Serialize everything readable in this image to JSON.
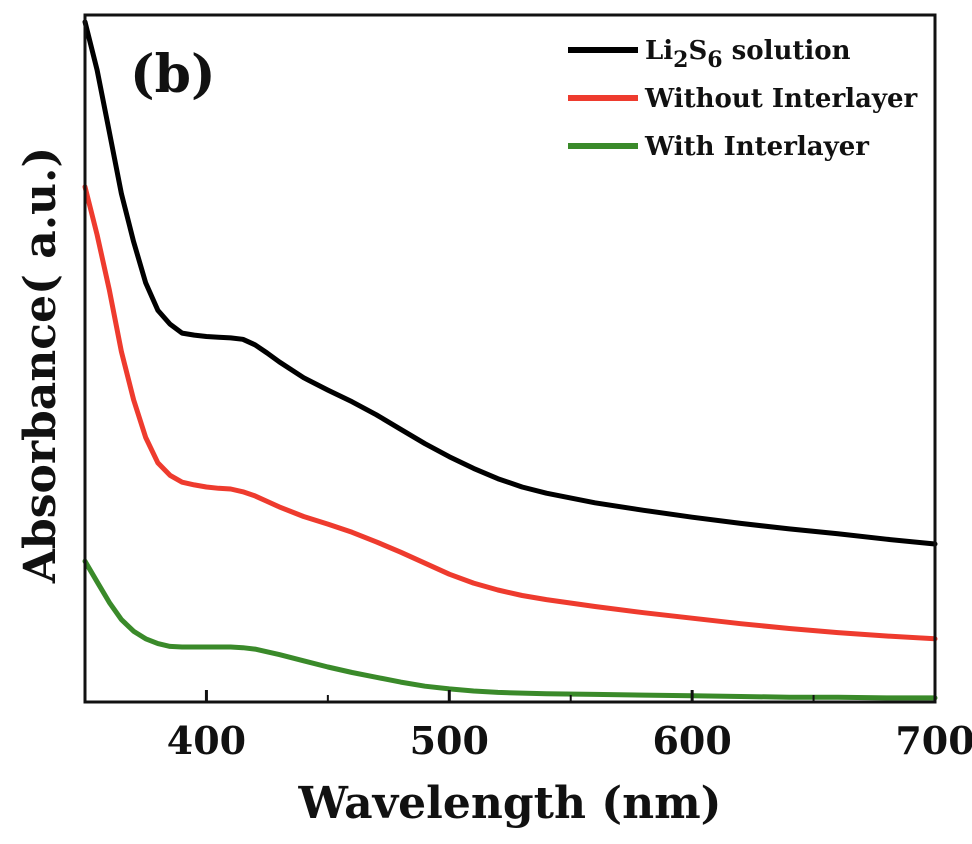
{
  "chart_data": {
    "type": "line",
    "panel_label": "(b)",
    "title": "",
    "xlabel": "Wavelength (nm)",
    "ylabel": "Absorbance( a.u.)",
    "xlim": [
      350,
      700
    ],
    "ylim": [
      0,
      1.0
    ],
    "xticks": [
      400,
      500,
      600,
      700
    ],
    "y_tick_labels": false,
    "grid": false,
    "legend_position": "top-right",
    "series": [
      {
        "name": "Li2S6 solution",
        "name_parts": {
          "pre": "Li",
          "sub1": "2",
          "mid": "S",
          "sub2": "6",
          "post": " solution"
        },
        "color": "#000000",
        "x": [
          350,
          355,
          360,
          365,
          370,
          375,
          380,
          385,
          390,
          395,
          400,
          405,
          410,
          415,
          420,
          425,
          430,
          440,
          450,
          460,
          470,
          480,
          490,
          500,
          510,
          520,
          530,
          540,
          560,
          580,
          600,
          620,
          640,
          660,
          680,
          700
        ],
        "y": [
          0.99,
          0.92,
          0.83,
          0.74,
          0.67,
          0.61,
          0.57,
          0.55,
          0.537,
          0.534,
          0.532,
          0.531,
          0.53,
          0.528,
          0.52,
          0.508,
          0.495,
          0.472,
          0.454,
          0.437,
          0.418,
          0.397,
          0.376,
          0.357,
          0.34,
          0.325,
          0.313,
          0.304,
          0.29,
          0.279,
          0.269,
          0.26,
          0.252,
          0.245,
          0.237,
          0.23
        ]
      },
      {
        "name": "Without Interlayer",
        "color": "#ee3b2e",
        "x": [
          350,
          355,
          360,
          365,
          370,
          375,
          380,
          385,
          390,
          395,
          400,
          405,
          410,
          415,
          420,
          425,
          430,
          440,
          450,
          460,
          470,
          480,
          490,
          500,
          510,
          520,
          530,
          540,
          560,
          580,
          600,
          620,
          640,
          660,
          680,
          700
        ],
        "y": [
          0.75,
          0.68,
          0.6,
          0.51,
          0.44,
          0.385,
          0.348,
          0.33,
          0.32,
          0.316,
          0.313,
          0.311,
          0.31,
          0.306,
          0.3,
          0.292,
          0.284,
          0.27,
          0.259,
          0.247,
          0.233,
          0.218,
          0.202,
          0.186,
          0.173,
          0.163,
          0.155,
          0.149,
          0.139,
          0.13,
          0.122,
          0.114,
          0.107,
          0.101,
          0.096,
          0.092
        ]
      },
      {
        "name": "With Interlayer",
        "color": "#3a8a2a",
        "x": [
          350,
          355,
          360,
          365,
          370,
          375,
          380,
          385,
          390,
          395,
          400,
          405,
          410,
          415,
          420,
          425,
          430,
          440,
          450,
          460,
          470,
          480,
          490,
          500,
          510,
          520,
          530,
          540,
          560,
          580,
          600,
          620,
          640,
          660,
          680,
          700
        ],
        "y": [
          0.205,
          0.175,
          0.145,
          0.12,
          0.103,
          0.092,
          0.085,
          0.081,
          0.08,
          0.08,
          0.08,
          0.08,
          0.08,
          0.079,
          0.077,
          0.073,
          0.069,
          0.06,
          0.051,
          0.043,
          0.036,
          0.029,
          0.023,
          0.019,
          0.016,
          0.014,
          0.013,
          0.012,
          0.011,
          0.01,
          0.009,
          0.008,
          0.007,
          0.007,
          0.006,
          0.006
        ]
      }
    ]
  }
}
